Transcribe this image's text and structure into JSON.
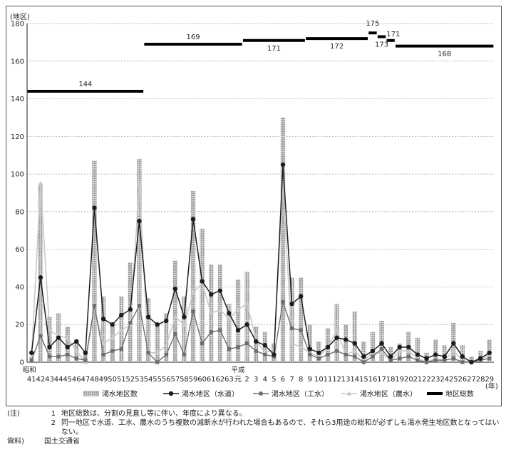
{
  "chart_data": {
    "type": "bar",
    "y_unit": "(地区)",
    "x_unit": "(年)",
    "ylim": [
      0,
      180
    ],
    "yticks": [
      0,
      20,
      40,
      60,
      80,
      100,
      120,
      140,
      160,
      180
    ],
    "grid": true,
    "legend_position": "bottom",
    "era_labels": [
      "昭和",
      "平成"
    ],
    "x": [
      "41",
      "42",
      "43",
      "44",
      "45",
      "46",
      "47",
      "48",
      "49",
      "50",
      "51",
      "52",
      "53",
      "54",
      "55",
      "56",
      "57",
      "58",
      "59",
      "60",
      "61",
      "62",
      "63",
      "元",
      "2",
      "3",
      "4",
      "5",
      "6",
      "7",
      "8",
      "9",
      "10",
      "11",
      "12",
      "13",
      "14",
      "15",
      "16",
      "17",
      "18",
      "19",
      "20",
      "21",
      "22",
      "23",
      "24",
      "25",
      "26",
      "27",
      "28",
      "29"
    ],
    "series": [
      {
        "name": "渇水地区数",
        "kind": "bar",
        "values": [
          3,
          95,
          24,
          26,
          19,
          12,
          6,
          107,
          35,
          20,
          35,
          53,
          108,
          34,
          21,
          26,
          54,
          35,
          91,
          71,
          52,
          52,
          31,
          44,
          48,
          19,
          16,
          10,
          130,
          45,
          45,
          20,
          11,
          18,
          31,
          20,
          27,
          11,
          16,
          22,
          8,
          10,
          16,
          13,
          5,
          12,
          9,
          21,
          9,
          3,
          6,
          12
        ]
      },
      {
        "name": "渇水地区（水道）",
        "kind": "line",
        "values": [
          5,
          45,
          8,
          13,
          8,
          11,
          5,
          82,
          23,
          20,
          25,
          28,
          75,
          24,
          20,
          22,
          39,
          24,
          76,
          43,
          36,
          38,
          26,
          17,
          20,
          11,
          9,
          4,
          105,
          31,
          35,
          7,
          5,
          8,
          13,
          12,
          10,
          3,
          6,
          10,
          3,
          8,
          8,
          4,
          2,
          4,
          3,
          10,
          3,
          0,
          2,
          5
        ]
      },
      {
        "name": "渇水地区（工水）",
        "kind": "line",
        "values": [
          1,
          14,
          3,
          3,
          4,
          2,
          1,
          30,
          4,
          6,
          7,
          21,
          30,
          5,
          0,
          4,
          15,
          4,
          27,
          10,
          16,
          17,
          7,
          8,
          10,
          6,
          4,
          3,
          32,
          18,
          17,
          4,
          2,
          4,
          6,
          4,
          3,
          0,
          3,
          7,
          1,
          2,
          3,
          1,
          0,
          1,
          1,
          2,
          0,
          0,
          1,
          2
        ]
      },
      {
        "name": "渇水地区（農水）",
        "kind": "line",
        "values": [
          3,
          95,
          17,
          14,
          13,
          6,
          0,
          28,
          10,
          13,
          17,
          20,
          95,
          5,
          5,
          9,
          24,
          20,
          37,
          42,
          26,
          28,
          23,
          28,
          31,
          12,
          5,
          7,
          95,
          10,
          8,
          5,
          3,
          8,
          17,
          4,
          6,
          1,
          5,
          5,
          1,
          6,
          6,
          2,
          0,
          2,
          1,
          6,
          1,
          0,
          1,
          4
        ]
      },
      {
        "name": "地区総数",
        "kind": "step",
        "segments": [
          {
            "from": "41",
            "to": "53",
            "value": 144
          },
          {
            "from": "54",
            "to": "元",
            "value": 169
          },
          {
            "from": "2",
            "to": "8",
            "value": 171
          },
          {
            "from": "9",
            "to": "15",
            "value": 172
          },
          {
            "from": "16",
            "to": "16",
            "value": 175
          },
          {
            "from": "17",
            "to": "17",
            "value": 173
          },
          {
            "from": "18",
            "to": "18",
            "value": 171
          },
          {
            "from": "19",
            "to": "29",
            "value": 168
          }
        ]
      }
    ],
    "colors": {
      "bar": "#9a9a9a",
      "water": "#1c1c1c",
      "industrial": "#6e6e6e",
      "agri": "#c9c9c9",
      "total": "#000000",
      "grid": "#9a9a9a"
    }
  },
  "notes": {
    "label": "(注)",
    "items": [
      {
        "num": "1",
        "text": "地区総数は、分割の見直し等に伴い、年度により異なる。"
      },
      {
        "num": "2",
        "text": "同一地区で水道、工水、農水のうち複数の減断水が行われた場合もあるので、それら3用途の総和が必ずしも渇水発生地区数となってはいない。"
      }
    ],
    "source_label": "資料)",
    "source_text": "国土交通省"
  }
}
